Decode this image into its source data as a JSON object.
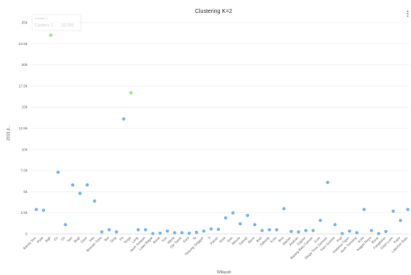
{
  "chart_data": {
    "type": "scatter",
    "title": "Clustering K=2",
    "xlabel": "Wilayah",
    "ylabel": "2019 (t...",
    "ylim": [
      0,
      25000
    ],
    "yticks": [
      "0",
      "2.5k",
      "5k",
      "7.5k",
      "10k",
      "12.5k",
      "15k",
      "17.5k",
      "20k",
      "22.5k",
      "25k"
    ],
    "grid": true,
    "tooltip": {
      "label": "Cluster 1",
      "series": "Clusters 1",
      "value": "23.000"
    },
    "colors": {
      "cluster_1": "#7cb5ec",
      "cluster_2": "#90ed7d"
    },
    "categories": [
      "Banda Seo",
      "Pidie",
      "Sigli",
      "Ch",
      "Ch",
      "Tam",
      "Bugi",
      "Geut",
      "Vita",
      "Bireuen Toba",
      "Bal",
      "Sing",
      "Pa",
      "Terga",
      "Lang",
      "Aceh Selatan",
      "Lawe Bagat",
      "Barat",
      "Tion",
      "Meda",
      "Gle Tamik",
      "Sara",
      "Te",
      "Tanjung Singgah",
      "Ti",
      "Panah",
      "Rola",
      "Dan",
      "Minuta",
      "Samaji",
      "Bane",
      "Bart",
      "Sabang",
      "Kota",
      "Bira",
      "Medan",
      "Asahan",
      "Gaplas",
      "Batang Batu Cemen",
      "Kuta",
      "Dinga Tima Samosir",
      "Karo Sumba",
      "Pad",
      "Nadama Tigan",
      "Aceh Tamiang",
      "Kota",
      "Nagan Raya",
      "Barat",
      "Pangkalan",
      "Gayo Lues",
      "Kaba",
      "Labuhan Batu"
    ],
    "series": [
      {
        "name": "Cluster 1",
        "values": [
          2900,
          2800,
          null,
          7300,
          1100,
          5800,
          4800,
          5800,
          3900,
          250,
          500,
          250,
          13600,
          null,
          500,
          500,
          50,
          100,
          350,
          150,
          150,
          100,
          200,
          350,
          600,
          550,
          1900,
          2500,
          1200,
          2200,
          1100,
          400,
          500,
          500,
          3000,
          300,
          250,
          400,
          400,
          1600,
          6100,
          1100,
          50,
          350,
          150,
          2900,
          400,
          50,
          300,
          2700,
          1600,
          2900
        ]
      },
      {
        "name": "Cluster 2",
        "values": [
          null,
          null,
          23500,
          null,
          null,
          null,
          null,
          null,
          null,
          null,
          null,
          null,
          null,
          16700,
          null,
          null,
          null,
          null,
          null,
          null,
          null,
          null,
          null,
          null,
          null,
          null,
          null,
          null,
          null,
          null,
          null,
          null,
          null,
          null,
          null,
          null,
          null,
          null,
          null,
          null,
          null,
          null,
          null,
          null,
          null,
          null,
          null,
          null,
          null,
          null,
          null,
          null
        ]
      }
    ]
  }
}
